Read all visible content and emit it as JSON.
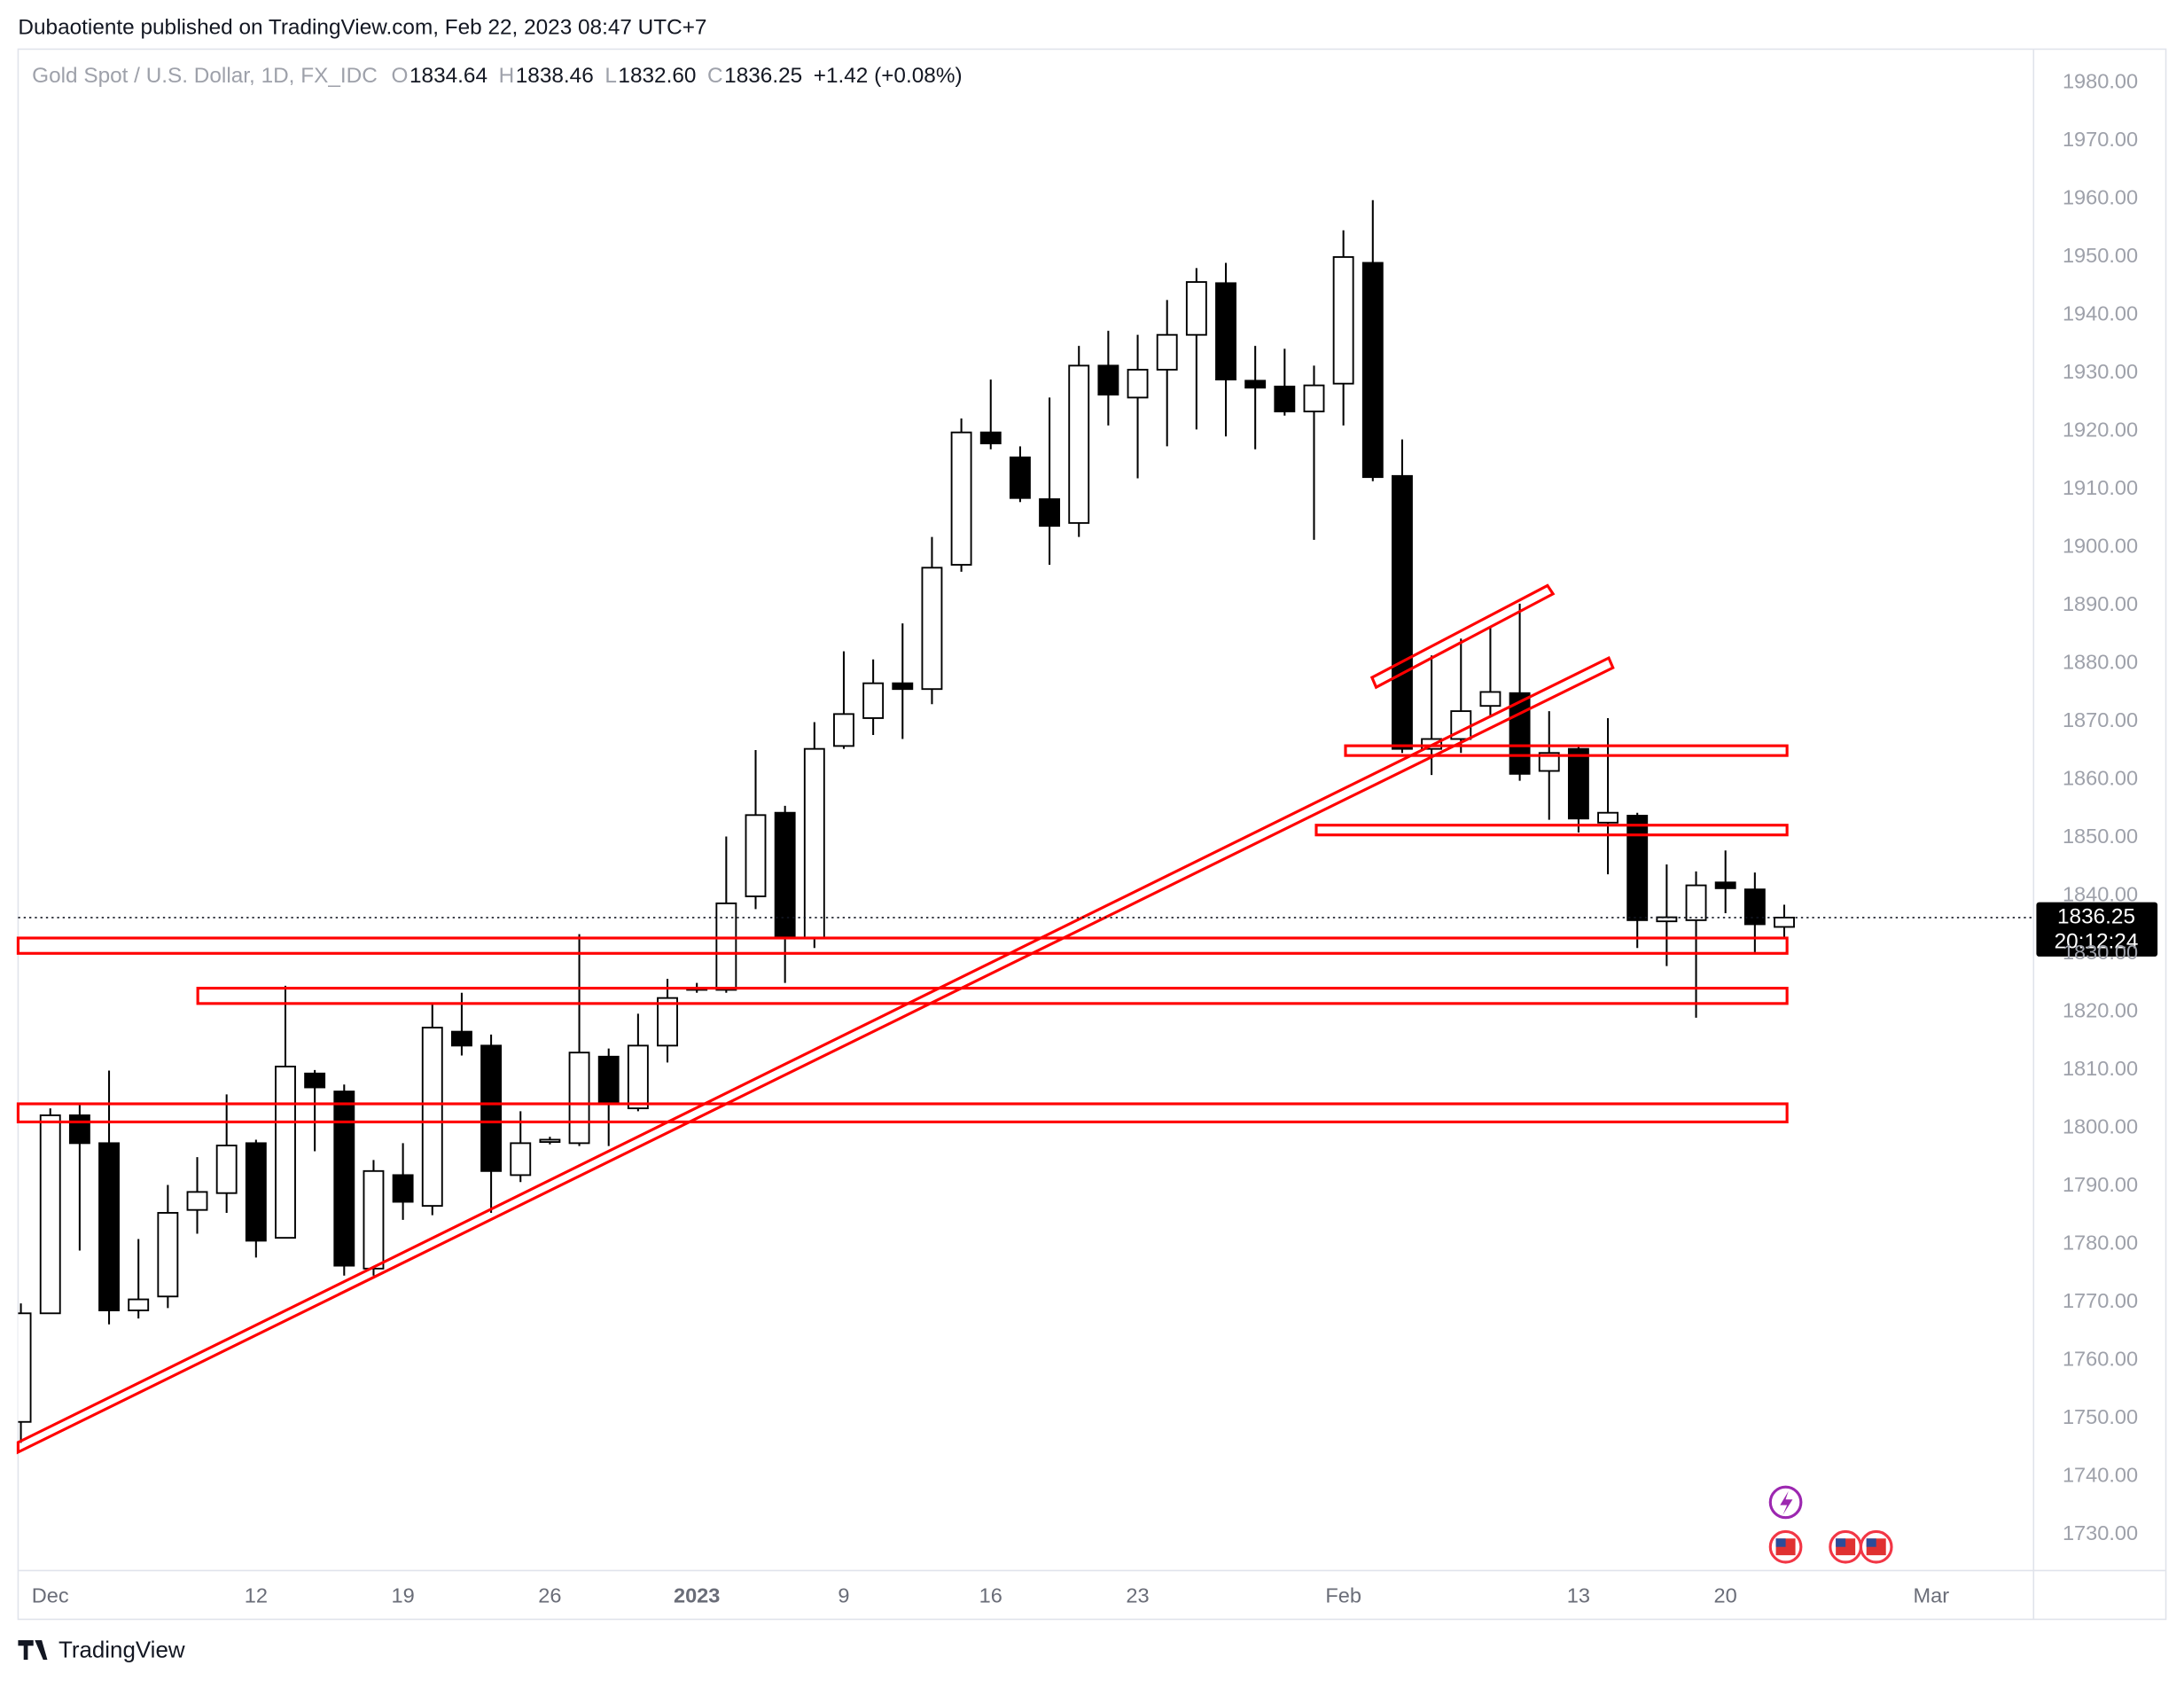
{
  "header": "Dubaotiente published on TradingView.com, Feb 22, 2023 08:47 UTC+7",
  "footer": "TradingView",
  "chart_data": {
    "type": "candlestick",
    "legend": {
      "symbol": "Gold Spot / U.S. Dollar, 1D, FX_IDC",
      "items": [
        {
          "key": "O",
          "value": "1834.64"
        },
        {
          "key": "H",
          "value": "1838.46"
        },
        {
          "key": "L",
          "value": "1832.60"
        },
        {
          "key": "C",
          "value": "1836.25"
        }
      ],
      "change": "+1.42 (+0.08%)"
    },
    "price_label": {
      "price": "1836.25",
      "countdown": "20:12:24"
    },
    "categories": [
      null,
      "Dec",
      null,
      null,
      null,
      null,
      null,
      null,
      "12",
      null,
      null,
      null,
      null,
      "19",
      null,
      null,
      null,
      null,
      "26",
      null,
      null,
      null,
      null,
      "2023",
      null,
      null,
      null,
      null,
      "9",
      null,
      null,
      null,
      null,
      "16",
      null,
      null,
      null,
      null,
      "23",
      null,
      null,
      null,
      null,
      null,
      null,
      "Feb",
      null,
      null,
      null,
      null,
      null,
      null,
      null,
      "13",
      null,
      null,
      null,
      null,
      "20",
      null,
      null,
      null,
      null,
      null,
      null,
      "Mar"
    ],
    "open": [
      1749.4,
      1768.1,
      1802.2,
      1797.4,
      1768.6,
      1771.0,
      1785.9,
      1788.8,
      1797.4,
      1781.1,
      1809.4,
      1806.3,
      1775.8,
      1791.9,
      1786.6,
      1816.6,
      1814.2,
      1791.9,
      1797.6,
      1797.4,
      1812.3,
      1803.4,
      1814.2,
      1823.8,
      1823.8,
      1839.9,
      1854.3,
      1832.7,
      1865.8,
      1870.6,
      1876.6,
      1875.6,
      1897.0,
      1919.8,
      1915.5,
      1908.3,
      1904.2,
      1931.3,
      1925.8,
      1930.6,
      1936.6,
      1945.5,
      1928.7,
      1927.7,
      1923.4,
      1928.2,
      1949.0,
      1912.3,
      1865.3,
      1867.0,
      1872.7,
      1874.9,
      1861.5,
      1865.3,
      1852.6,
      1853.8,
      1835.6,
      1835.8,
      1842.3,
      1841.1,
      1834.64,
      null,
      null,
      null,
      null,
      null
    ],
    "high": [
      1769.8,
      1803.4,
      1804.1,
      1809.9,
      1780.9,
      1790.2,
      1795.0,
      1805.8,
      1798.0,
      1824.5,
      1810.0,
      1807.5,
      1794.5,
      1797.4,
      1821.4,
      1823.3,
      1816.1,
      1802.9,
      1798.5,
      1833.4,
      1813.7,
      1819.7,
      1825.7,
      1825.0,
      1850.2,
      1865.1,
      1855.5,
      1869.9,
      1882.1,
      1880.7,
      1886.9,
      1901.8,
      1922.2,
      1928.9,
      1917.4,
      1925.8,
      1934.7,
      1937.3,
      1936.6,
      1942.6,
      1948.1,
      1949.0,
      1934.7,
      1934.2,
      1931.3,
      1954.6,
      1959.8,
      1918.6,
      1881.4,
      1884.3,
      1886.2,
      1890.3,
      1871.8,
      1865.8,
      1870.6,
      1854.3,
      1845.4,
      1844.2,
      1847.8,
      1844.0,
      1838.46,
      null,
      null,
      null,
      null,
      null
    ],
    "low": [
      1745.8,
      1768.0,
      1778.9,
      1766.2,
      1767.2,
      1769.0,
      1781.8,
      1785.4,
      1777.7,
      1781.0,
      1796.0,
      1774.6,
      1774.6,
      1784.2,
      1785.0,
      1812.5,
      1785.4,
      1790.7,
      1797.2,
      1796.9,
      1796.9,
      1802.9,
      1811.3,
      1823.3,
      1823.3,
      1837.7,
      1825.0,
      1831.0,
      1865.3,
      1867.7,
      1867.0,
      1873.0,
      1895.8,
      1916.9,
      1907.8,
      1897.0,
      1901.8,
      1921.0,
      1911.9,
      1917.4,
      1920.3,
      1919.1,
      1916.9,
      1922.7,
      1901.3,
      1921.0,
      1911.4,
      1864.6,
      1860.8,
      1864.6,
      1871.0,
      1859.8,
      1853.1,
      1850.9,
      1843.7,
      1831.0,
      1827.9,
      1819.0,
      1837.0,
      1830.3,
      1832.6,
      null,
      null,
      null,
      null,
      null
    ],
    "close": [
      1768.1,
      1802.2,
      1797.4,
      1768.6,
      1770.5,
      1785.4,
      1789.0,
      1797.0,
      1780.6,
      1810.6,
      1807.0,
      1776.3,
      1792.6,
      1787.3,
      1817.3,
      1814.2,
      1792.6,
      1797.4,
      1798.0,
      1813.0,
      1804.1,
      1814.2,
      1822.4,
      1824.1,
      1838.7,
      1853.9,
      1832.7,
      1865.3,
      1871.3,
      1876.6,
      1875.6,
      1896.5,
      1919.8,
      1917.9,
      1908.5,
      1903.7,
      1931.3,
      1926.3,
      1930.6,
      1936.6,
      1945.7,
      1928.9,
      1927.5,
      1923.4,
      1927.9,
      1950.0,
      1912.1,
      1865.3,
      1867.0,
      1871.8,
      1875.1,
      1861.0,
      1864.6,
      1853.3,
      1854.3,
      1835.8,
      1836.3,
      1841.8,
      1841.3,
      1835.1,
      1836.25,
      null,
      null,
      null,
      null,
      null
    ],
    "colors": {
      "up": "#ffffff",
      "down": "#000000",
      "outline": "#000000"
    },
    "ylim": [
      1723.8,
      1985.8
    ],
    "yticks": [
      {
        "value": 1730,
        "label": "1730.00"
      },
      {
        "value": 1740,
        "label": "1740.00"
      },
      {
        "value": 1750,
        "label": "1750.00"
      },
      {
        "value": 1760,
        "label": "1760.00"
      },
      {
        "value": 1770,
        "label": "1770.00"
      },
      {
        "value": 1780,
        "label": "1780.00"
      },
      {
        "value": 1790,
        "label": "1790.00"
      },
      {
        "value": 1800,
        "label": "1800.00"
      },
      {
        "value": 1810,
        "label": "1810.00"
      },
      {
        "value": 1820,
        "label": "1820.00"
      },
      {
        "value": 1830,
        "label": "1830.00"
      },
      {
        "value": 1840,
        "label": "1840.00"
      },
      {
        "value": 1850,
        "label": "1850.00"
      },
      {
        "value": 1860,
        "label": "1860.00"
      },
      {
        "value": 1870,
        "label": "1870.00"
      },
      {
        "value": 1880,
        "label": "1880.00"
      },
      {
        "value": 1890,
        "label": "1890.00"
      },
      {
        "value": 1900,
        "label": "1900.00"
      },
      {
        "value": 1910,
        "label": "1910.00"
      },
      {
        "value": 1920,
        "label": "1920.00"
      },
      {
        "value": 1930,
        "label": "1930.00"
      },
      {
        "value": 1940,
        "label": "1940.00"
      },
      {
        "value": 1950,
        "label": "1950.00"
      },
      {
        "value": 1960,
        "label": "1960.00"
      },
      {
        "value": 1970,
        "label": "1970.00"
      },
      {
        "value": 1980,
        "label": "1980.00"
      }
    ],
    "bold_category": "2023",
    "grid": false
  }
}
